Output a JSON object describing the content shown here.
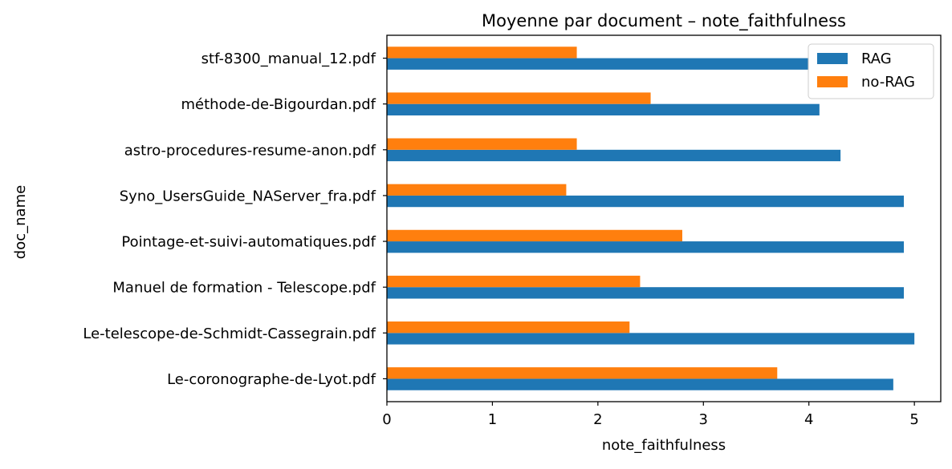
{
  "chart_data": {
    "type": "bar",
    "orientation": "horizontal",
    "title": "Moyenne par document – note_faithfulness",
    "xlabel": "note_faithfulness",
    "ylabel": "doc_name",
    "xlim": [
      0,
      5.25
    ],
    "xticks": [
      "0",
      "1",
      "2",
      "3",
      "4",
      "5"
    ],
    "grid": false,
    "legend_position": "top-right",
    "categories": [
      "Le-coronographe-de-Lyot.pdf",
      "Le-telescope-de-Schmidt-Cassegrain.pdf",
      "Manuel de formation - Telescope.pdf",
      "Pointage-et-suivi-automatiques.pdf",
      "Syno_UsersGuide_NAServer_fra.pdf",
      "astro-procedures-resume-anon.pdf",
      "méthode-de-Bigourdan.pdf",
      "stf-8300_manual_12.pdf"
    ],
    "series": [
      {
        "name": "RAG",
        "color": "#1f77b4",
        "values": [
          4.8,
          5.0,
          4.9,
          4.9,
          4.9,
          4.3,
          4.1,
          4.0
        ]
      },
      {
        "name": "no-RAG",
        "color": "#ff7f0e",
        "values": [
          3.7,
          2.3,
          2.4,
          2.8,
          1.7,
          1.8,
          2.5,
          1.8
        ]
      }
    ]
  }
}
